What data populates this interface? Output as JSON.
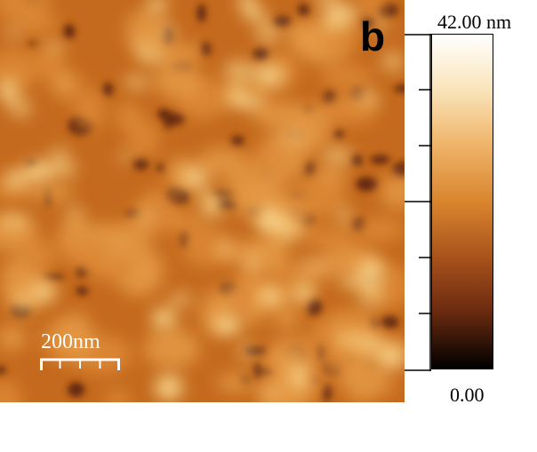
{
  "panel_label": "b",
  "scale_bar": {
    "label": "200nm"
  },
  "colorbar": {
    "max_label": "42.00 nm",
    "min_label": "0.00",
    "colors": [
      "#ffffff",
      "#f9e3b8",
      "#efb469",
      "#d9852e",
      "#a8511b",
      "#6a2a10",
      "#000000"
    ]
  },
  "image": {
    "base_color": "#c86d1f",
    "highlight_color": "#f8d48a",
    "shadow_color": "#5a2208"
  }
}
